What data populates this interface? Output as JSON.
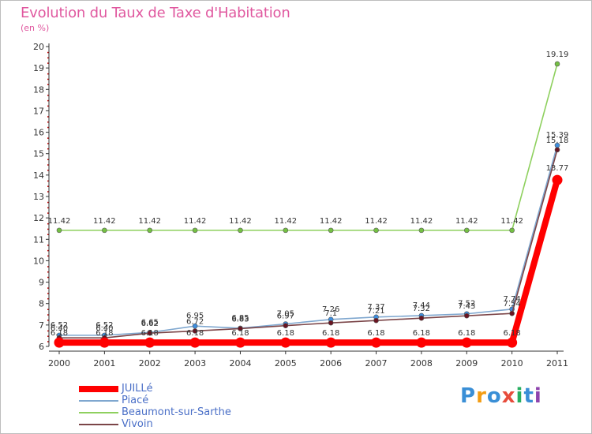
{
  "title": "Evolution du Taux de Taxe d'Habitation",
  "subtitle": "(en %)",
  "logo": {
    "letters": [
      "P",
      "r",
      "o",
      "x",
      "i",
      "t",
      "i"
    ],
    "colors": [
      "#3a8fd6",
      "#f39c12",
      "#3a8fd6",
      "#e74c3c",
      "#27ae60",
      "#3a8fd6",
      "#8e44ad"
    ]
  },
  "chart_data": {
    "type": "line",
    "title": "Evolution du Taux de Taxe d'Habitation",
    "ylabel": "(en %)",
    "xlabel": "",
    "ylim": [
      6,
      20
    ],
    "yticks": [
      "6",
      "7",
      "8",
      "9",
      "10",
      "11",
      "12",
      "13",
      "14",
      "15",
      "16",
      "17",
      "18",
      "19",
      "20"
    ],
    "x": [
      "2000",
      "2001",
      "2002",
      "2003",
      "2004",
      "2005",
      "2006",
      "2007",
      "2008",
      "2009",
      "2010",
      "2011"
    ],
    "grid": false,
    "legend": "bottom-left",
    "series": [
      {
        "name": "JUILLé",
        "color": "#ff0000",
        "marker": "#ff0000",
        "values": [
          6.18,
          6.18,
          6.18,
          6.18,
          6.18,
          6.18,
          6.18,
          6.18,
          6.18,
          6.18,
          6.18,
          13.77
        ],
        "labels": [
          "6.18",
          "6.18",
          "6.18",
          "6.18",
          "6.18",
          "6.18",
          "6.18",
          "6.18",
          "6.18",
          "6.18",
          "6.18",
          "13.77"
        ]
      },
      {
        "name": "Piacé",
        "color": "#7fa7cf",
        "marker": "#3e8ede",
        "values": [
          6.52,
          6.52,
          6.65,
          6.95,
          6.85,
          7.05,
          7.26,
          7.37,
          7.44,
          7.52,
          7.74,
          15.39
        ],
        "labels": [
          "6.52",
          "6.52",
          "6.65",
          "6.95",
          "6.85",
          "7.05",
          "7.26",
          "7.37",
          "7.44",
          "7.52",
          "7.74",
          "15.39"
        ]
      },
      {
        "name": "Beaumont-sur-Sarthe",
        "color": "#8ed05e",
        "marker": "#74c043",
        "values": [
          11.42,
          11.42,
          11.42,
          11.42,
          11.42,
          11.42,
          11.42,
          11.42,
          11.42,
          11.42,
          11.42,
          19.19
        ],
        "labels": [
          "11.42",
          "11.42",
          "11.42",
          "11.42",
          "11.42",
          "11.42",
          "11.42",
          "11.42",
          "11.42",
          "11.42",
          "11.42",
          "19.19"
        ]
      },
      {
        "name": "Vivoin",
        "color": "#7b4548",
        "marker": "#6a1522",
        "values": [
          6.4,
          6.4,
          6.62,
          6.72,
          6.83,
          6.97,
          7.1,
          7.21,
          7.32,
          7.43,
          7.54,
          15.18
        ],
        "labels": [
          "6.40",
          "6.40",
          "6.62",
          "6.72",
          "6.83",
          "6.97",
          "7.1",
          "7.21",
          "7.32",
          "7.43",
          "7.54",
          "15.18"
        ]
      }
    ]
  }
}
